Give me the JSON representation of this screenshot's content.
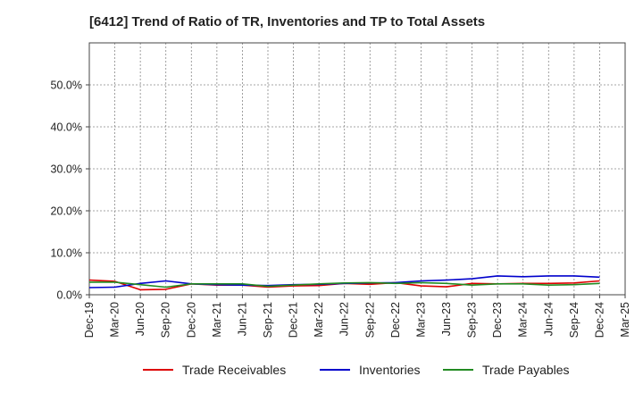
{
  "title": "[6412]  Trend of Ratio of TR, Inventories and TP to Total Assets",
  "colors": {
    "trade_receivables": "#dd0000",
    "inventories": "#0000cc",
    "trade_payables": "#228b22",
    "grid": "#888888",
    "axis": "#444444"
  },
  "chart_data": {
    "type": "line",
    "title": "[6412]  Trend of Ratio of TR, Inventories and TP to Total Assets",
    "xlabel": "",
    "ylabel": "",
    "ylim": [
      0,
      0.6
    ],
    "y_ticks": [
      0.0,
      0.1,
      0.2,
      0.3,
      0.4,
      0.5
    ],
    "y_tick_labels": [
      "0.0%",
      "10.0%",
      "20.0%",
      "30.0%",
      "40.0%",
      "50.0%"
    ],
    "x_tick_labels": [
      "Dec-19",
      "Mar-20",
      "Jun-20",
      "Sep-20",
      "Dec-20",
      "Mar-21",
      "Jun-21",
      "Sep-21",
      "Dec-21",
      "Mar-22",
      "Jun-22",
      "Sep-22",
      "Dec-22",
      "Mar-23",
      "Jun-23",
      "Sep-23",
      "Dec-23",
      "Mar-24",
      "Jun-24",
      "Sep-24",
      "Dec-24",
      "Mar-25"
    ],
    "x": [
      "Dec-19",
      "Mar-20",
      "Jun-20",
      "Sep-20",
      "Dec-20",
      "Mar-21",
      "Jun-21",
      "Sep-21",
      "Dec-21",
      "Mar-22",
      "Jun-22",
      "Sep-22",
      "Dec-22",
      "Mar-23",
      "Jun-23",
      "Sep-23",
      "Dec-23",
      "Mar-24",
      "Jun-24",
      "Sep-24",
      "Dec-24"
    ],
    "grid": true,
    "legend_position": "bottom",
    "series": [
      {
        "name": "Trade Receivables",
        "color": "#dd0000",
        "values": [
          0.035,
          0.032,
          0.012,
          0.013,
          0.026,
          0.023,
          0.023,
          0.018,
          0.021,
          0.022,
          0.027,
          0.025,
          0.029,
          0.021,
          0.019,
          0.027,
          0.026,
          0.027,
          0.027,
          0.028,
          0.033
        ]
      },
      {
        "name": "Inventories",
        "color": "#0000cc",
        "values": [
          0.017,
          0.018,
          0.027,
          0.033,
          0.026,
          0.024,
          0.023,
          0.022,
          0.024,
          0.025,
          0.027,
          0.028,
          0.029,
          0.033,
          0.035,
          0.038,
          0.045,
          0.043,
          0.045,
          0.045,
          0.042
        ]
      },
      {
        "name": "Trade Payables",
        "color": "#228b22",
        "values": [
          0.03,
          0.03,
          0.024,
          0.018,
          0.026,
          0.026,
          0.026,
          0.02,
          0.023,
          0.026,
          0.028,
          0.029,
          0.027,
          0.029,
          0.027,
          0.023,
          0.026,
          0.026,
          0.023,
          0.024,
          0.027
        ]
      }
    ]
  }
}
